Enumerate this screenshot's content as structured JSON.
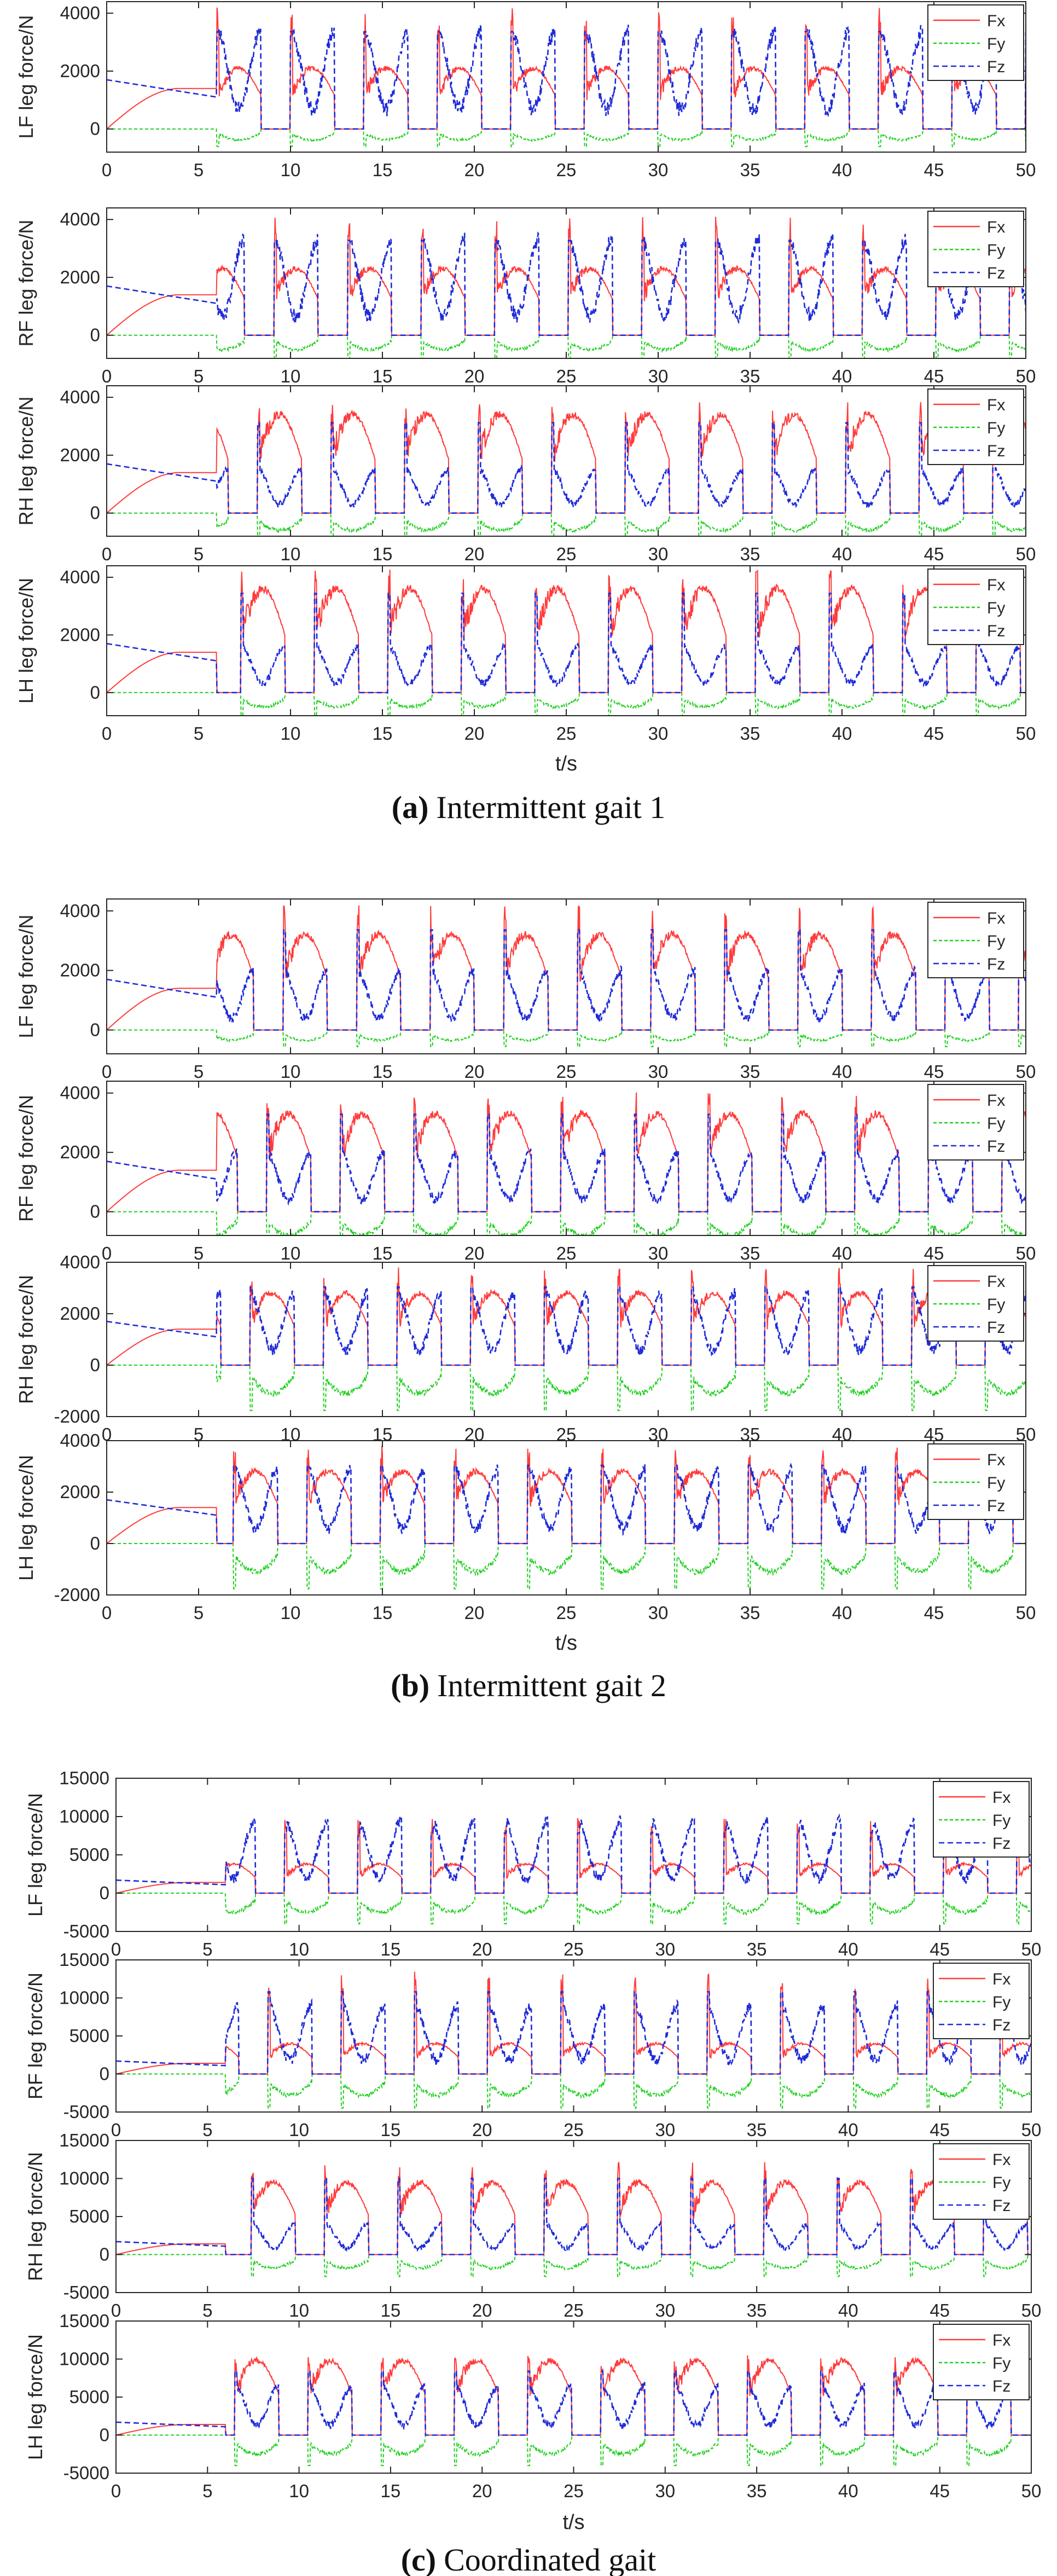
{
  "colors": {
    "fx": "#ff3b3b",
    "fy": "#1fd01f",
    "fz": "#1f2bd8",
    "axis": "#262626"
  },
  "chart_data": [
    {
      "panel": "a",
      "caption_letter": "(a)",
      "caption_text": "Intermittent gait 1",
      "type": "line",
      "xlabel": "t/s",
      "xlim": [
        0,
        50
      ],
      "xticks": [
        "0",
        "5",
        "10",
        "15",
        "20",
        "25",
        "30",
        "35",
        "40",
        "45",
        "50"
      ],
      "subplots": [
        {
          "ylabel": "LF leg force/N",
          "ylim": [
            -800,
            4400
          ],
          "yticks": [
            0,
            2000,
            4000
          ],
          "ytick_labels": [
            "0",
            "2000",
            "4000"
          ],
          "legend": [
            "Fx",
            "Fy",
            "Fz"
          ],
          "style": {
            "fxPeak": 2100,
            "fzPeak": 3400,
            "fyMin": -380,
            "spike": 4200
          }
        },
        {
          "ylabel": "RF leg force/N",
          "ylim": [
            -800,
            4400
          ],
          "yticks": [
            0,
            2000,
            4000
          ],
          "ytick_labels": [
            "0",
            "2000",
            "4000"
          ],
          "legend": [
            "Fx",
            "Fy",
            "Fz"
          ],
          "style": {
            "fxPeak": 2300,
            "fzPeak": 3300,
            "fyMin": -500,
            "spike": 4100
          }
        },
        {
          "ylabel": "RH leg force/N",
          "ylim": [
            -800,
            4400
          ],
          "yticks": [
            0,
            2000,
            4000
          ],
          "ytick_labels": [
            "0",
            "2000",
            "4000"
          ],
          "legend": [
            "Fx",
            "Fy",
            "Fz"
          ],
          "style": {
            "fxPeak": 3400,
            "fzPeak": 1500,
            "fyMin": -600,
            "spike": 3900
          }
        },
        {
          "ylabel": "LH leg force/N",
          "ylim": [
            -800,
            4400
          ],
          "yticks": [
            0,
            2000,
            4000
          ],
          "ytick_labels": [
            "0",
            "2000",
            "4000"
          ],
          "legend": [
            "Fx",
            "Fy",
            "Fz"
          ],
          "style": {
            "fxPeak": 3600,
            "fzPeak": 1600,
            "fyMin": -500,
            "spike": 4300
          }
        }
      ]
    },
    {
      "panel": "b",
      "caption_letter": "(b)",
      "caption_text": "Intermittent gait 2",
      "type": "line",
      "xlabel": "t/s",
      "xlim": [
        0,
        50
      ],
      "xticks": [
        "0",
        "5",
        "10",
        "15",
        "20",
        "25",
        "30",
        "35",
        "40",
        "45",
        "50"
      ],
      "subplots": [
        {
          "ylabel": "LF leg force/N",
          "ylim": [
            -800,
            4400
          ],
          "yticks": [
            0,
            2000,
            4000
          ],
          "ytick_labels": [
            "0",
            "2000",
            "4000"
          ],
          "legend": [
            "Fx",
            "Fy",
            "Fz"
          ],
          "style": {
            "fxPeak": 3200,
            "fzPeak": 2000,
            "fyMin": -350,
            "spike": 4200
          }
        },
        {
          "ylabel": "RF leg force/N",
          "ylim": [
            -800,
            4400
          ],
          "yticks": [
            0,
            2000,
            4000
          ],
          "ytick_labels": [
            "0",
            "2000",
            "4000"
          ],
          "legend": [
            "Fx",
            "Fy",
            "Fz"
          ],
          "style": {
            "fxPeak": 3300,
            "fzPeak": 2000,
            "fyMin": -800,
            "spike": 4100
          }
        },
        {
          "ylabel": "RH leg force/N",
          "ylim": [
            -2000,
            4000
          ],
          "yticks": [
            -2000,
            0,
            2000,
            4000
          ],
          "ytick_labels": [
            "-2000",
            "0",
            "2000",
            "4000"
          ],
          "legend": [
            "Fx",
            "Fy",
            "Fz"
          ],
          "style": {
            "fxPeak": 2800,
            "fzPeak": 2800,
            "fyMin": -1100,
            "spike": 3800
          }
        },
        {
          "ylabel": "LH leg force/N",
          "ylim": [
            -2000,
            4000
          ],
          "yticks": [
            -2000,
            0,
            2000,
            4000
          ],
          "ytick_labels": [
            "-2000",
            "0",
            "2000",
            "4000"
          ],
          "legend": [
            "Fx",
            "Fy",
            "Fz"
          ],
          "style": {
            "fxPeak": 2800,
            "fzPeak": 2900,
            "fyMin": -1100,
            "spike": 3800
          }
        }
      ]
    },
    {
      "panel": "c",
      "caption_letter": "(c)",
      "caption_text": "Coordinated gait",
      "type": "line",
      "xlabel": "t/s",
      "xlim": [
        0,
        50
      ],
      "xticks": [
        "0",
        "5",
        "10",
        "15",
        "20",
        "25",
        "30",
        "35",
        "40",
        "45",
        "50"
      ],
      "subplots": [
        {
          "ylabel": "LF leg force/N",
          "ylim": [
            -5000,
            15000
          ],
          "yticks": [
            -5000,
            0,
            5000,
            10000,
            15000
          ],
          "ytick_labels": [
            "-5000",
            "0",
            "5000",
            "10000",
            "15000"
          ],
          "legend": [
            "Fx",
            "Fy",
            "Fz"
          ],
          "style": {
            "fxPeak": 3800,
            "fzPeak": 9500,
            "fyMin": -2500,
            "spike": 9800
          }
        },
        {
          "ylabel": "RF leg force/N",
          "ylim": [
            -5000,
            15000
          ],
          "yticks": [
            -5000,
            0,
            5000,
            10000,
            15000
          ],
          "ytick_labels": [
            "-5000",
            "0",
            "5000",
            "10000",
            "15000"
          ],
          "legend": [
            "Fx",
            "Fy",
            "Fz"
          ],
          "style": {
            "fxPeak": 4000,
            "fzPeak": 9000,
            "fyMin": -2800,
            "spike": 13500
          }
        },
        {
          "ylabel": "RH leg force/N",
          "ylim": [
            -5000,
            15000
          ],
          "yticks": [
            -5000,
            0,
            5000,
            10000,
            15000
          ],
          "ytick_labels": [
            "-5000",
            "0",
            "5000",
            "10000",
            "15000"
          ],
          "legend": [
            "Fx",
            "Fy",
            "Fz"
          ],
          "style": {
            "fxPeak": 9500,
            "fzPeak": 4000,
            "fyMin": -1800,
            "spike": 12500
          }
        },
        {
          "ylabel": "LH leg force/N",
          "ylim": [
            -5000,
            15000
          ],
          "yticks": [
            -5000,
            0,
            5000,
            10000,
            15000
          ],
          "ytick_labels": [
            "-5000",
            "0",
            "5000",
            "10000",
            "15000"
          ],
          "legend": [
            "Fx",
            "Fy",
            "Fz"
          ],
          "style": {
            "fxPeak": 9800,
            "fzPeak": 6500,
            "fyMin": -2500,
            "spike": 10500
          }
        }
      ]
    }
  ]
}
